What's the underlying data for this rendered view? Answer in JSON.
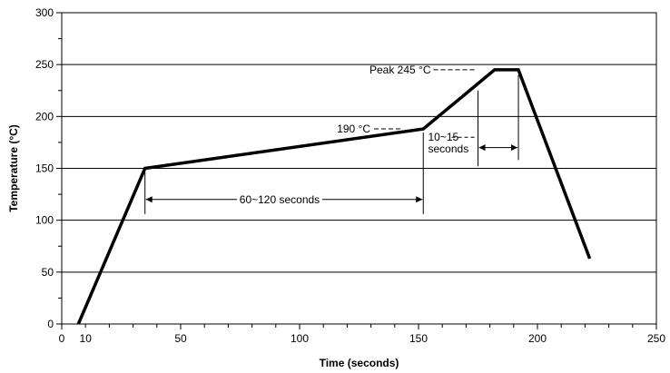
{
  "chart_data": {
    "type": "line",
    "xlabel": "Time (seconds)",
    "ylabel": "Temperature (°C)",
    "xlim": [
      0,
      250
    ],
    "ylim": [
      0,
      300
    ],
    "x_ticks": [
      0,
      10,
      50,
      100,
      150,
      200,
      250
    ],
    "y_ticks": [
      0,
      50,
      100,
      150,
      200,
      250,
      300
    ],
    "x_minor_step": 10,
    "y_minor_step": 25,
    "grid": "horizontal",
    "series": [
      {
        "points": [
          [
            7,
            0
          ],
          [
            35,
            150
          ],
          [
            152,
            188
          ],
          [
            182,
            245
          ],
          [
            192,
            245
          ],
          [
            222,
            63
          ]
        ]
      }
    ],
    "annotations": {
      "peak": {
        "text": "Peak 245 °C",
        "x": 175,
        "y": 245
      },
      "t190": {
        "text": "190 °C",
        "x": 142,
        "y": 188
      },
      "dur_60_120": {
        "text": "60~120 seconds",
        "x1": 35,
        "x2": 152,
        "y": 120
      },
      "dur_10_15": {
        "line1": "10~15",
        "line2": "seconds",
        "x1": 175,
        "x2": 192,
        "y": 170
      }
    }
  }
}
